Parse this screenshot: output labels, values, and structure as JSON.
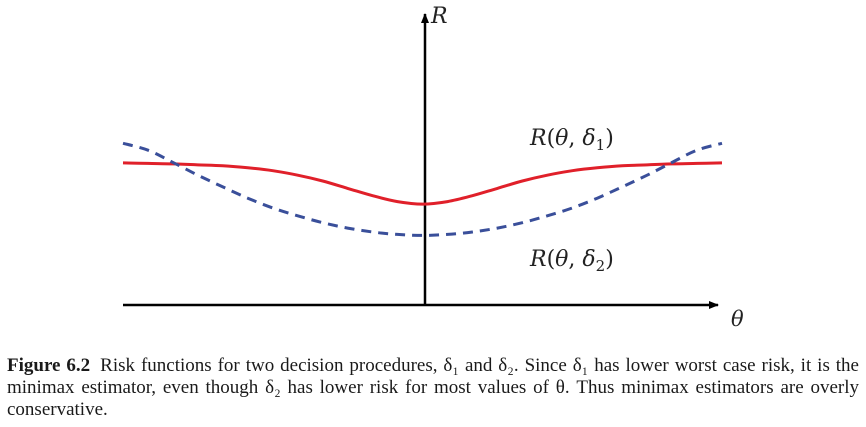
{
  "figure": {
    "y_axis_label": "R",
    "x_axis_label": "θ",
    "colors": {
      "delta1": "#e0202a",
      "delta2": "#3a4f9a",
      "axes": "#000000"
    }
  },
  "chart_data": {
    "type": "line",
    "title": "",
    "xlabel": "θ",
    "ylabel": "R",
    "grid": false,
    "x": [
      -6,
      -5.5,
      -5,
      -4.5,
      -4,
      -3.5,
      -3,
      -2.5,
      -2,
      -1.5,
      -1,
      -0.5,
      0,
      0.5,
      1,
      1.5,
      2,
      2.5,
      3,
      3.5,
      4,
      4.5,
      5,
      5.5,
      6
    ],
    "series": [
      {
        "name": "R(θ, δ₁)",
        "style": "solid",
        "color": "#e0202a",
        "values": [
          2.9,
          2.89,
          2.88,
          2.86,
          2.84,
          2.8,
          2.74,
          2.65,
          2.53,
          2.38,
          2.23,
          2.11,
          2.06,
          2.11,
          2.23,
          2.38,
          2.53,
          2.65,
          2.74,
          2.8,
          2.84,
          2.86,
          2.88,
          2.89,
          2.9
        ]
      },
      {
        "name": "R(θ, δ₂)",
        "style": "dashed",
        "color": "#3a4f9a",
        "values": [
          3.3,
          3.16,
          2.91,
          2.65,
          2.41,
          2.18,
          1.98,
          1.82,
          1.68,
          1.57,
          1.49,
          1.44,
          1.42,
          1.44,
          1.49,
          1.57,
          1.68,
          1.82,
          1.98,
          2.18,
          2.41,
          2.65,
          2.91,
          3.16,
          3.3
        ]
      }
    ],
    "annotations": [
      "R(θ, δ1)",
      "R(θ, δ2)"
    ]
  },
  "caption": {
    "label": "Figure 6.2",
    "text": "Risk functions for two decision procedures, δ₁ and δ₂. Since δ₁ has lower worst case risk, it is the minimax estimator, even though δ₂ has lower risk for most values of θ. Thus minimax estimators are overly conservative."
  }
}
